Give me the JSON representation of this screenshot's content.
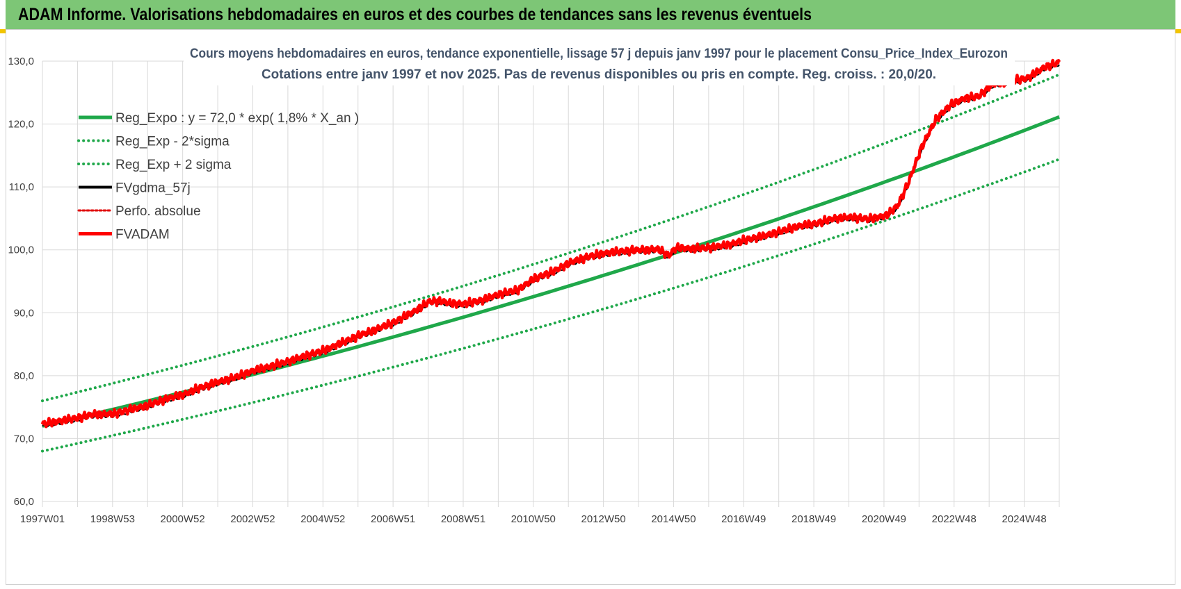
{
  "header": {
    "title": "ADAM Informe. Valorisations hebdomadaires en euros et des courbes de tendances sans les revenus éventuels"
  },
  "colors": {
    "header_bg": "#7dc676",
    "reg_green": "#1fa84a",
    "fvadam_red": "#ff0000",
    "fvgdma_black": "#000000",
    "perf_red": "#e00000",
    "title_color": "#44546a"
  },
  "chart_data": {
    "type": "line",
    "title": "Cours moyens  hebdomadaires en euros, tendance exponentielle, lissage 57 j depuis janv 1997 pour le placement Consu_Price_Index_Eurozon",
    "subtitle": "Cotations entre janv 1997 et nov 2025. Pas de revenus disponibles ou pris en compte. Reg. croiss. : 20,0/20.",
    "xlabel": "",
    "ylabel": "",
    "x_range": [
      1997.0,
      2025.9
    ],
    "ylim": [
      60,
      130
    ],
    "y_ticks": [
      "60,0",
      "70,0",
      "80,0",
      "90,0",
      "100,0",
      "110,0",
      "120,0",
      "130,0"
    ],
    "x_ticks": [
      "1997W01",
      "1998W53",
      "2000W52",
      "2002W52",
      "2004W52",
      "2006W51",
      "2008W51",
      "2010W50",
      "2012W50",
      "2014W50",
      "2016W49",
      "2018W49",
      "2020W49",
      "2022W48",
      "2024W48"
    ],
    "grid": true,
    "legend_position": "top-left",
    "series": [
      {
        "name": "Reg_Expo : y = 72,0 * exp( 1,8% *  X_an )",
        "style": "thick-solid-green",
        "model": "72.0*exp(0.018*(x-1997))",
        "points": [
          [
            1997.0,
            72.0
          ],
          [
            2025.9,
            122.9
          ]
        ]
      },
      {
        "name": "Reg_Exp - 2*sigma",
        "style": "dotted-green",
        "model": "68.0*exp(0.018*(x-1997))",
        "points": [
          [
            1997.0,
            68.0
          ],
          [
            2025.9,
            116.1
          ]
        ]
      },
      {
        "name": "Reg_Exp + 2 sigma",
        "style": "dotted-green",
        "model": "76.0*exp(0.018*(x-1997))",
        "points": [
          [
            1997.0,
            76.0
          ],
          [
            2025.9,
            129.8
          ]
        ]
      },
      {
        "name": "FVgdma_57j",
        "style": "solid-black"
      },
      {
        "name": "Perfo. absolue",
        "style": "dotted-red"
      },
      {
        "name": "FVADAM",
        "style": "thick-solid-red"
      }
    ],
    "fvadam": {
      "x": [
        1997.0,
        1997.5,
        1998.0,
        1998.5,
        1999.0,
        1999.5,
        2000.0,
        2000.5,
        2001.0,
        2001.5,
        2002.0,
        2002.5,
        2003.0,
        2003.5,
        2004.0,
        2004.5,
        2005.0,
        2005.5,
        2006.0,
        2006.5,
        2007.0,
        2007.5,
        2008.0,
        2008.3,
        2008.6,
        2009.0,
        2009.5,
        2010.0,
        2010.5,
        2011.0,
        2011.5,
        2012.0,
        2012.5,
        2013.0,
        2013.5,
        2014.0,
        2014.5,
        2014.8,
        2015.0,
        2015.5,
        2016.0,
        2016.5,
        2017.0,
        2017.5,
        2018.0,
        2018.5,
        2019.0,
        2019.5,
        2020.0,
        2020.5,
        2021.0,
        2021.3,
        2021.6,
        2022.0,
        2022.4,
        2022.8,
        2023.2,
        2023.6,
        2024.0,
        2024.5,
        2025.0,
        2025.5,
        2025.9
      ],
      "y": [
        72.3,
        72.8,
        73.3,
        73.9,
        73.9,
        74.6,
        75.3,
        76.3,
        77.0,
        78.1,
        79.0,
        79.8,
        80.8,
        81.5,
        82.3,
        83.2,
        84.0,
        85.2,
        86.4,
        87.4,
        88.5,
        90.0,
        91.8,
        91.9,
        91.5,
        91.4,
        92.0,
        93.0,
        93.6,
        95.5,
        96.5,
        98.0,
        98.9,
        99.5,
        99.8,
        100.0,
        100.1,
        99.1,
        100.3,
        100.2,
        100.4,
        100.8,
        101.6,
        102.2,
        103.0,
        103.8,
        104.2,
        105.0,
        105.2,
        104.9,
        105.5,
        107.0,
        110.5,
        116.5,
        120.8,
        123.0,
        124.1,
        124.4,
        126.3,
        126.8,
        127.3,
        129.1,
        129.8
      ]
    }
  }
}
